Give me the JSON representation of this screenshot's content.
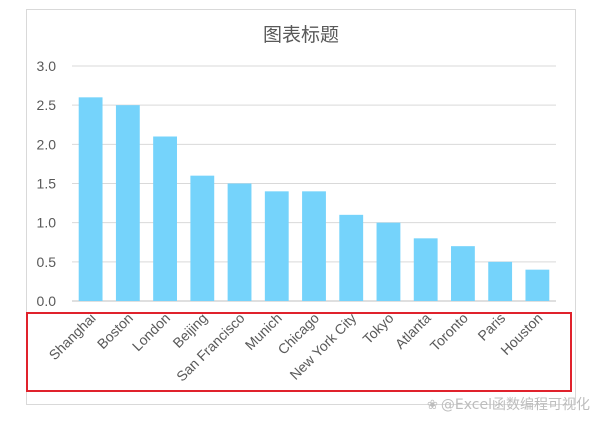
{
  "chart_data": {
    "type": "bar",
    "title": "图表标题",
    "categories": [
      "Shanghai",
      "Boston",
      "London",
      "Beijing",
      "San Francisco",
      "Munich",
      "Chicago",
      "New York City",
      "Tokyo",
      "Atlanta",
      "Toronto",
      "Paris",
      "Houston"
    ],
    "values": [
      2.6,
      2.5,
      2.1,
      1.6,
      1.5,
      1.4,
      1.4,
      1.1,
      1.0,
      0.8,
      0.7,
      0.5,
      0.4
    ],
    "ylim": [
      0,
      3.0
    ],
    "yticks": [
      "0.0",
      "0.5",
      "1.0",
      "1.5",
      "2.0",
      "2.5",
      "3.0"
    ],
    "xlabel": "",
    "ylabel": "",
    "grid": true,
    "bar_color": "#75d3fb",
    "grid_color": "#d9d9d9"
  },
  "annotation": {
    "highlight_color": "#e0222c"
  },
  "watermark": {
    "icon": "paw-icon",
    "text": "@Excel函数编程可视化"
  }
}
